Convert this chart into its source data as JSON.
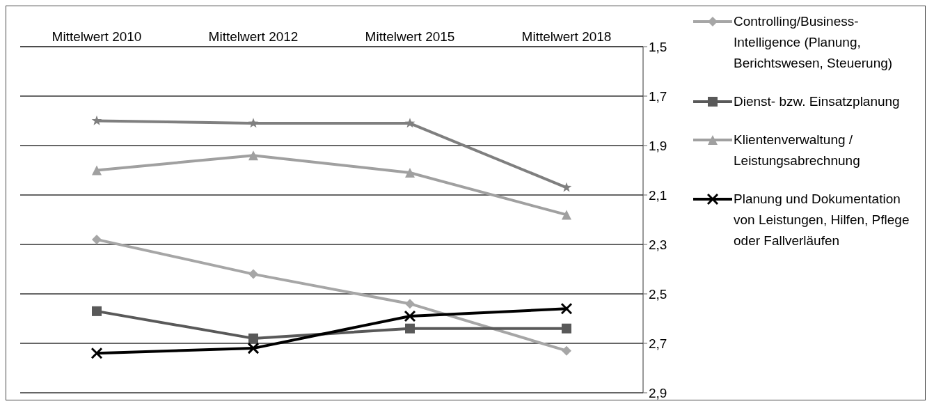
{
  "chart_data": {
    "type": "line",
    "categories": [
      "Mittelwert 2010",
      "Mittelwert 2012",
      "Mittelwert 2015",
      "Mittelwert 2018"
    ],
    "series": [
      {
        "name": "Controlling/Business-Intelligence (Planung, Berichtswesen, Steuerung)",
        "color": "#a6a6a6",
        "marker": "diamond",
        "values": [
          2.28,
          2.42,
          2.54,
          2.73
        ]
      },
      {
        "name": "Dienst- bzw. Einsatzplanung",
        "color": "#595959",
        "marker": "square",
        "values": [
          2.57,
          2.68,
          2.64,
          2.64
        ]
      },
      {
        "name": "Klientenverwaltung / Leistungsabrechnung",
        "color": "#a0a0a0",
        "marker": "triangle",
        "values": [
          2.0,
          1.94,
          2.01,
          2.18
        ]
      },
      {
        "name": "Planung und Dokumentation von Leistungen, Hilfen, Pflege oder Fallverläufen",
        "color": "#000000",
        "marker": "cross",
        "values": [
          2.74,
          2.72,
          2.59,
          2.56
        ]
      },
      {
        "color": "#7f7f7f",
        "marker": "star",
        "values": [
          1.8,
          1.81,
          1.81,
          2.07
        ]
      }
    ],
    "ylim": [
      2.9,
      1.5
    ],
    "yticks": [
      {
        "value": 1.5,
        "label": "1,5"
      },
      {
        "value": 1.7,
        "label": "1,7"
      },
      {
        "value": 1.9,
        "label": "1,9"
      },
      {
        "value": 2.1,
        "label": "2,1"
      },
      {
        "value": 2.3,
        "label": "2,3"
      },
      {
        "value": 2.5,
        "label": "2,5"
      },
      {
        "value": 2.7,
        "label": "2,7"
      },
      {
        "value": 2.9,
        "label": "2,9"
      }
    ],
    "grid": "y",
    "legend": "right"
  }
}
